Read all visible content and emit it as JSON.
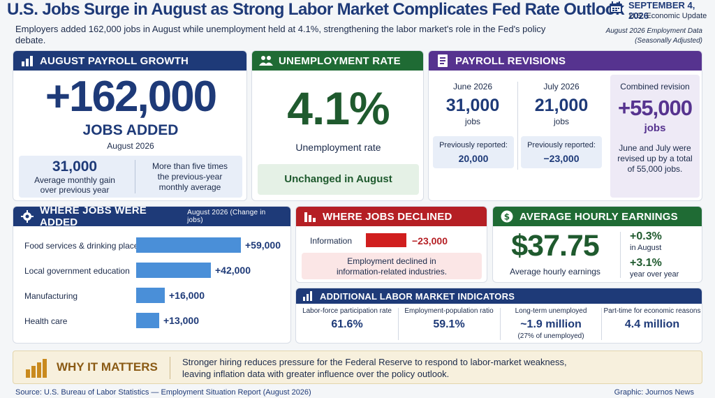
{
  "header": {
    "title": "U.S. Jobs Surge in August as Strong Labor Market Complicates Fed Rate Outlook",
    "subtitle": "Employers added 162,000 jobs in August while unemployment held at 4.1%, strengthening the labor market's role in the Fed's policy debate.",
    "date": "SEPTEMBER 4, 2026",
    "update_label": "U.S. Economic Update",
    "data_note_1": "August 2026 Employment Data",
    "data_note_2": "(Seasonally Adjusted)"
  },
  "payroll": {
    "heading": "AUGUST PAYROLL GROWTH",
    "value": "+162,000",
    "unit": "JOBS ADDED",
    "period": "August 2026",
    "avg_value": "31,000",
    "avg_label_1": "Average monthly gain",
    "avg_label_2": "over previous year",
    "compare_1": "More than five times",
    "compare_2": "the previous-year",
    "compare_3": "monthly average"
  },
  "unemployment": {
    "heading": "UNEMPLOYMENT RATE",
    "value": "4.1%",
    "label": "Unemployment rate",
    "status": "Unchanged in August"
  },
  "revisions": {
    "heading": "PAYROLL REVISIONS",
    "june_label": "June 2026",
    "june_value": "31,000",
    "june_unit": "jobs",
    "june_prev_label": "Previously reported:",
    "june_prev_value": "20,000",
    "july_label": "July 2026",
    "july_value": "21,000",
    "july_unit": "jobs",
    "july_prev_label": "Previously reported:",
    "july_prev_value": "−23,000",
    "combined_label": "Combined revision",
    "combined_value": "+55,000",
    "combined_unit": "jobs",
    "combined_note_1": "June and July were",
    "combined_note_2": "revised up by a total",
    "combined_note_3": "of 55,000 jobs."
  },
  "added": {
    "heading": "WHERE JOBS WERE ADDED",
    "note": "August 2026 (Change in jobs)",
    "items": [
      {
        "label": "Food services & drinking places",
        "value": 59000,
        "text": "+59,000"
      },
      {
        "label": "Local government education",
        "value": 42000,
        "text": "+42,000"
      },
      {
        "label": "Manufacturing",
        "value": 16000,
        "text": "+16,000"
      },
      {
        "label": "Health care",
        "value": 13000,
        "text": "+13,000"
      }
    ]
  },
  "declined": {
    "heading": "WHERE JOBS DECLINED",
    "item_label": "Information",
    "item_value": 23000,
    "item_text": "−23,000",
    "note_1": "Employment declined in",
    "note_2": "information-related industries."
  },
  "earnings": {
    "heading": "AVERAGE HOURLY EARNINGS",
    "value": "$37.75",
    "label": "Average hourly earnings",
    "month_change": "+0.3%",
    "month_label": "in August",
    "year_change": "+3.1%",
    "year_label": "year over year"
  },
  "indicators": {
    "heading": "ADDITIONAL LABOR MARKET INDICATORS",
    "items": [
      {
        "label": "Labor-force participation rate",
        "value": "61.6%",
        "sub": ""
      },
      {
        "label": "Employment-population ratio",
        "value": "59.1%",
        "sub": ""
      },
      {
        "label": "Long-term unemployed",
        "value": "~1.9 million",
        "sub": "(27% of unemployed)"
      },
      {
        "label": "Part-time for economic reasons",
        "value": "4.4 million",
        "sub": ""
      }
    ]
  },
  "matters": {
    "heading": "WHY IT MATTERS",
    "text_1": "Stronger hiring reduces pressure for the Federal Reserve to respond to labor-market weakness,",
    "text_2": "leaving inflation data with greater influence over the policy outlook."
  },
  "footer": {
    "source": "Source:  U.S. Bureau of Labor Statistics — Employment Situation Report (August 2026)",
    "graphic": "Graphic:  Journos News"
  },
  "colors": {
    "navy": "#1e3a78",
    "green": "#1f6b34",
    "purple": "#56338f",
    "red": "#b51f24",
    "bar_blue": "#4a8fd8",
    "gold": "#c98a1e"
  }
}
